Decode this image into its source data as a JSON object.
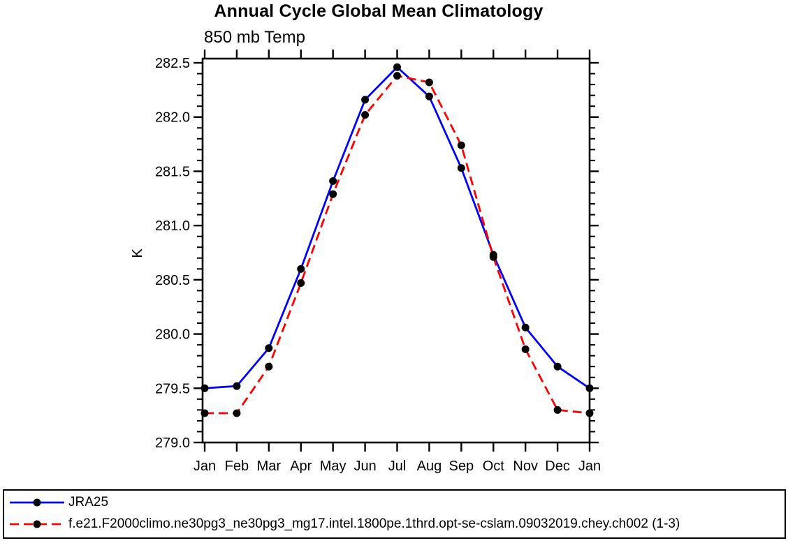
{
  "chart_data": {
    "type": "line",
    "title": "Annual Cycle Global Mean Climatology",
    "subtitle": "850 mb Temp",
    "ylabel": "K",
    "categories": [
      "Jan",
      "Feb",
      "Mar",
      "Apr",
      "May",
      "Jun",
      "Jul",
      "Aug",
      "Sep",
      "Oct",
      "Nov",
      "Dec",
      "Jan"
    ],
    "ylim": [
      279.0,
      282.5
    ],
    "yticks": [
      282.5,
      282.0,
      281.5,
      281.0,
      280.5,
      280.0,
      279.5,
      279.0
    ],
    "minor_tick_interval": 0.1,
    "grid": false,
    "legend_position": "bottom-left-box",
    "series": [
      {
        "name": "JRA25",
        "color": "#0000ff",
        "line_style": "solid",
        "marker": "filled-circle",
        "marker_color": "#000000",
        "values": [
          279.5,
          279.52,
          279.87,
          280.6,
          281.41,
          282.16,
          282.46,
          282.19,
          281.53,
          280.73,
          280.06,
          279.7,
          279.5
        ]
      },
      {
        "name": "f.e21.F2000climo.ne30pg3_ne30pg3_mg17.intel.1800pe.1thrd.opt-se-cslam.09032019.chey.ch002 (1-3)",
        "color": "#ff0000",
        "line_style": "dashed",
        "marker": "filled-circle",
        "marker_color": "#000000",
        "values": [
          279.27,
          279.27,
          279.7,
          280.47,
          281.29,
          282.02,
          282.38,
          282.32,
          281.74,
          280.71,
          279.86,
          279.3,
          279.27
        ]
      }
    ]
  },
  "colors": {
    "background": "#ffffff",
    "frame": "#000000",
    "text": "#000000"
  }
}
